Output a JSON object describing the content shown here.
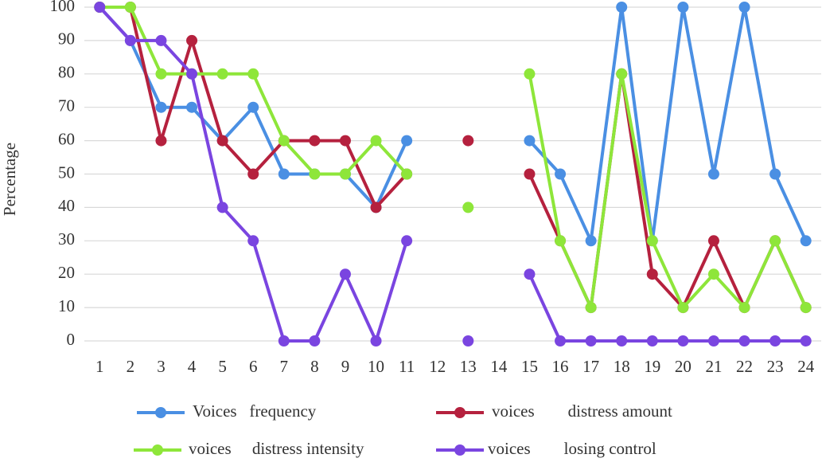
{
  "chart_data": {
    "type": "line",
    "y_label": "Percentage",
    "categories": [
      "1",
      "2",
      "3",
      "4",
      "5",
      "6",
      "7",
      "8",
      "9",
      "10",
      "11",
      "12",
      "13",
      "14",
      "15",
      "16",
      "17",
      "18",
      "19",
      "20",
      "21",
      "22",
      "23",
      "24"
    ],
    "series": [
      {
        "name": "Voices   frequency",
        "color": "#4a8fe3",
        "values": [
          100,
          90,
          70,
          70,
          60,
          70,
          50,
          50,
          50,
          40,
          60,
          null,
          null,
          null,
          60,
          50,
          30,
          100,
          30,
          100,
          50,
          100,
          50,
          30
        ]
      },
      {
        "name": "voices        distress amount",
        "color": "#b5213e",
        "values": [
          100,
          100,
          60,
          90,
          60,
          50,
          60,
          60,
          60,
          40,
          50,
          null,
          60,
          null,
          50,
          30,
          10,
          80,
          20,
          10,
          30,
          10,
          30,
          10
        ]
      },
      {
        "name": "voices     distress intensity",
        "color": "#8ee63a",
        "values": [
          100,
          100,
          80,
          80,
          80,
          80,
          60,
          50,
          50,
          60,
          50,
          null,
          40,
          null,
          80,
          30,
          10,
          80,
          30,
          10,
          20,
          10,
          30,
          10
        ]
      },
      {
        "name": "voices        losing control",
        "color": "#7a45e0",
        "values": [
          100,
          90,
          90,
          80,
          40,
          30,
          0,
          0,
          20,
          0,
          30,
          null,
          0,
          null,
          20,
          0,
          0,
          0,
          0,
          0,
          0,
          0,
          0,
          0
        ]
      }
    ],
    "ylim": [
      0,
      100
    ],
    "yticks": [
      0,
      10,
      20,
      30,
      40,
      50,
      60,
      70,
      80,
      90,
      100
    ],
    "grid": true
  }
}
